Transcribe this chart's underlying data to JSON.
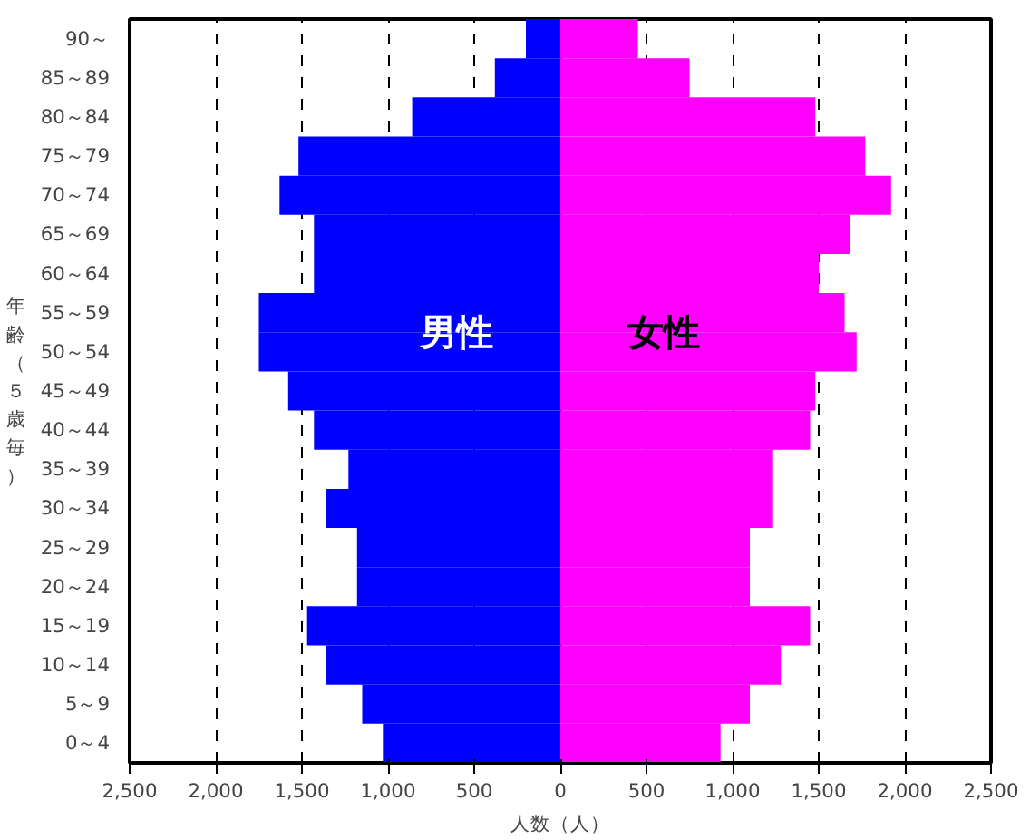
{
  "chart_data": {
    "type": "bar",
    "orientation": "horizontal",
    "xlabel": "人数（人）",
    "ylabel": "年齢（５歳毎）",
    "categories": [
      "90～",
      "85～89",
      "80～84",
      "75～79",
      "70～74",
      "65～69",
      "60～64",
      "55～59",
      "50～54",
      "45～49",
      "40～44",
      "35～39",
      "30～34",
      "25～29",
      "20～24",
      "15～19",
      "10～14",
      "5～9",
      "0～4"
    ],
    "series": [
      {
        "name": "男性",
        "color": "#0000ff",
        "values": [
          -200,
          -380,
          -860,
          -1520,
          -1630,
          -1430,
          -1430,
          -1750,
          -1750,
          -1580,
          -1430,
          -1230,
          -1360,
          -1180,
          -1180,
          -1470,
          -1360,
          -1150,
          -1030
        ]
      },
      {
        "name": "女性",
        "color": "#ff00ff",
        "values": [
          450,
          750,
          1480,
          1770,
          1920,
          1680,
          1500,
          1650,
          1720,
          1480,
          1450,
          1230,
          1230,
          1100,
          1100,
          1450,
          1280,
          1100,
          930
        ]
      }
    ],
    "xlim": [
      -2500,
      2500
    ],
    "xticks": [
      {
        "value": -2500,
        "label": "2,500"
      },
      {
        "value": -2000,
        "label": "2,000"
      },
      {
        "value": -1500,
        "label": "1,500"
      },
      {
        "value": -1000,
        "label": "1,000"
      },
      {
        "value": -500,
        "label": "500"
      },
      0,
      500,
      {
        "value": 1000,
        "label": "1,000"
      },
      {
        "value": 1500,
        "label": "1,500"
      },
      {
        "value": 2000,
        "label": "2,000"
      },
      {
        "value": 2500,
        "label": "2,500"
      }
    ],
    "grid": "x",
    "stacked": true
  }
}
